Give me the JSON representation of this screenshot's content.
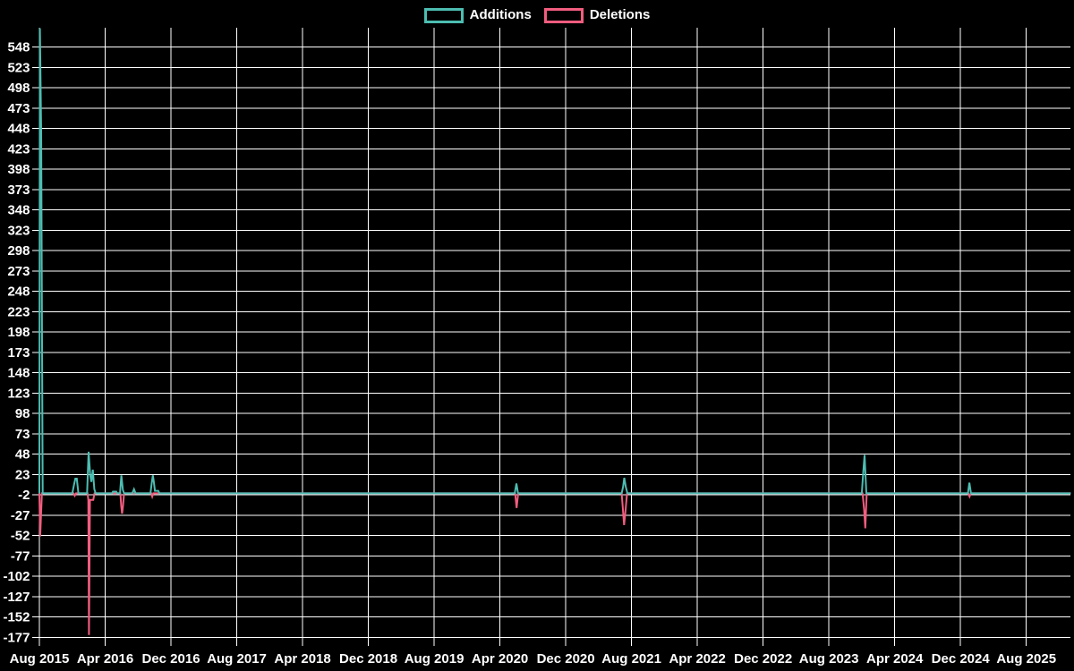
{
  "legend": {
    "additions_label": "Additions",
    "deletions_label": "Deletions"
  },
  "colors": {
    "background": "#000000",
    "grid": "#ffffff",
    "text": "#ffffff",
    "additions": "#4dbdb2",
    "deletions": "#f25d7f"
  },
  "chart_data": {
    "type": "line",
    "title": "",
    "xlabel": "",
    "ylabel": "",
    "grid": true,
    "legend_position": "top-center",
    "x_axis": {
      "unit": "months since Aug 2015",
      "tick_step_months": 8,
      "range_months": [
        0,
        125.4
      ],
      "tick_labels": [
        "Aug 2015",
        "Apr 2016",
        "Dec 2016",
        "Aug 2017",
        "Apr 2018",
        "Dec 2018",
        "Aug 2019",
        "Apr 2020",
        "Dec 2020",
        "Aug 2021",
        "Apr 2022",
        "Dec 2022",
        "Aug 2023",
        "Apr 2024",
        "Dec 2024",
        "Aug 2025"
      ]
    },
    "y_axis": {
      "min": -177,
      "max": 548,
      "step": 25,
      "tick_labels": [
        "548",
        "523",
        "498",
        "473",
        "448",
        "423",
        "398",
        "373",
        "348",
        "323",
        "298",
        "273",
        "248",
        "223",
        "198",
        "173",
        "148",
        "123",
        "98",
        "73",
        "48",
        "23",
        "-2",
        "-27",
        "-52",
        "-77",
        "-102",
        "-127",
        "-152",
        "-177"
      ]
    },
    "series": [
      {
        "name": "Additions",
        "color": "#4dbdb2",
        "points": [
          [
            0,
            0
          ],
          [
            0.07,
            571
          ],
          [
            0.22,
            445
          ],
          [
            0.4,
            0
          ],
          [
            4.0,
            0
          ],
          [
            4.2,
            10
          ],
          [
            4.38,
            18
          ],
          [
            4.55,
            18
          ],
          [
            4.75,
            0
          ],
          [
            5.8,
            0
          ],
          [
            5.98,
            51
          ],
          [
            6.18,
            22
          ],
          [
            6.32,
            14
          ],
          [
            6.5,
            29
          ],
          [
            6.68,
            5
          ],
          [
            6.85,
            0
          ],
          [
            8.85,
            0
          ],
          [
            8.95,
            2
          ],
          [
            9.35,
            2
          ],
          [
            9.45,
            0
          ],
          [
            9.8,
            0
          ],
          [
            9.97,
            22
          ],
          [
            10.15,
            4
          ],
          [
            10.3,
            0
          ],
          [
            11.3,
            0
          ],
          [
            11.5,
            5
          ],
          [
            11.7,
            0
          ],
          [
            13.5,
            0
          ],
          [
            13.68,
            14
          ],
          [
            13.8,
            22
          ],
          [
            13.92,
            14
          ],
          [
            14.05,
            3
          ],
          [
            14.45,
            3
          ],
          [
            14.6,
            0
          ],
          [
            57.8,
            0
          ],
          [
            58.0,
            12
          ],
          [
            58.2,
            0
          ],
          [
            70.8,
            0
          ],
          [
            70.98,
            8
          ],
          [
            71.12,
            19
          ],
          [
            71.3,
            8
          ],
          [
            71.5,
            0
          ],
          [
            100.0,
            0
          ],
          [
            100.18,
            27
          ],
          [
            100.34,
            47
          ],
          [
            100.55,
            0
          ],
          [
            112.9,
            0
          ],
          [
            113.08,
            13
          ],
          [
            113.28,
            0
          ],
          [
            125.4,
            0
          ]
        ]
      },
      {
        "name": "Deletions",
        "color": "#f25d7f",
        "points": [
          [
            0,
            0
          ],
          [
            0.1,
            -53
          ],
          [
            0.3,
            0
          ],
          [
            4.15,
            0
          ],
          [
            4.3,
            -3
          ],
          [
            4.45,
            0
          ],
          [
            5.85,
            0
          ],
          [
            5.95,
            -8
          ],
          [
            6.03,
            -174
          ],
          [
            6.15,
            -8
          ],
          [
            6.55,
            -8
          ],
          [
            6.7,
            0
          ],
          [
            9.85,
            0
          ],
          [
            9.95,
            -15
          ],
          [
            10.05,
            -25
          ],
          [
            10.18,
            -15
          ],
          [
            10.3,
            0
          ],
          [
            13.6,
            0
          ],
          [
            13.72,
            -4
          ],
          [
            13.85,
            0
          ],
          [
            57.85,
            0
          ],
          [
            58.03,
            -18
          ],
          [
            58.22,
            0
          ],
          [
            70.8,
            0
          ],
          [
            70.95,
            -20
          ],
          [
            71.1,
            -39
          ],
          [
            71.28,
            -20
          ],
          [
            71.45,
            0
          ],
          [
            100.1,
            0
          ],
          [
            100.28,
            -20
          ],
          [
            100.42,
            -43
          ],
          [
            100.6,
            0
          ],
          [
            112.95,
            0
          ],
          [
            113.1,
            -4
          ],
          [
            113.25,
            0
          ],
          [
            125.4,
            0
          ]
        ]
      }
    ]
  }
}
